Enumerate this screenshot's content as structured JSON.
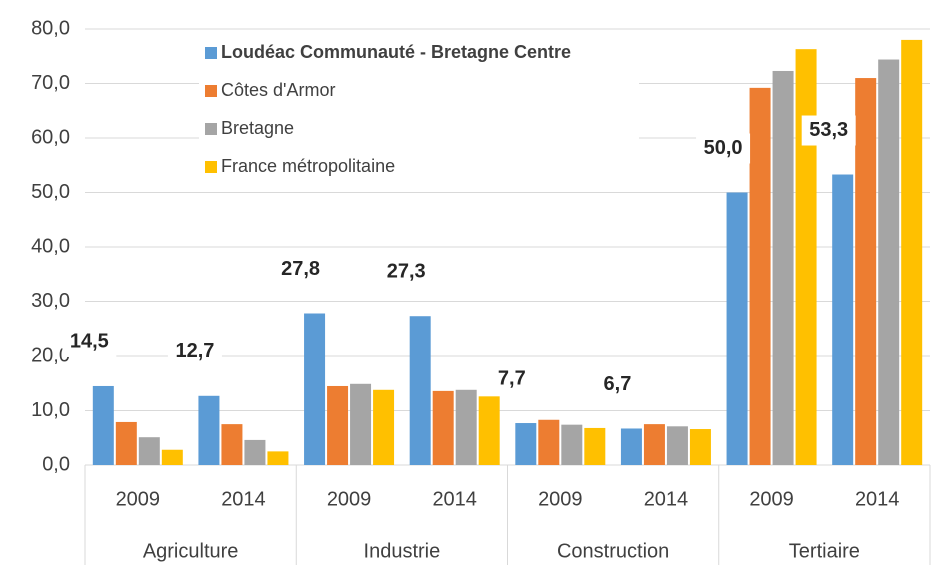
{
  "chart_data": {
    "type": "bar",
    "categories": [
      "2009",
      "2014",
      "2009",
      "2014",
      "2009",
      "2014",
      "2009",
      "2014"
    ],
    "groups": [
      "Agriculture",
      "Industrie",
      "Construction",
      "Tertiaire"
    ],
    "series": [
      {
        "name": "Loudéac Communauté - Bretagne Centre",
        "color": "#5b9bd5",
        "values": [
          14.5,
          12.7,
          27.8,
          27.3,
          7.7,
          6.7,
          50.0,
          53.3
        ],
        "value_labels": [
          "14,5",
          "12,7",
          "27,8",
          "27,3",
          "7,7",
          "6,7",
          "50,0",
          "53,3"
        ]
      },
      {
        "name": "Côtes d'Armor",
        "color": "#ed7d31",
        "values": [
          7.9,
          7.5,
          14.5,
          13.6,
          8.3,
          7.5,
          69.2,
          71.0
        ]
      },
      {
        "name": "Bretagne",
        "color": "#a5a5a5",
        "values": [
          5.1,
          4.6,
          14.9,
          13.8,
          7.4,
          7.1,
          72.3,
          74.4
        ]
      },
      {
        "name": "France métropolitaine",
        "color": "#ffc000",
        "values": [
          2.8,
          2.5,
          13.8,
          12.6,
          6.8,
          6.6,
          76.3,
          78.0
        ]
      }
    ],
    "ylim": [
      0,
      80
    ],
    "yticks": [
      {
        "value": 0,
        "label": "0,0"
      },
      {
        "value": 10,
        "label": "10,0"
      },
      {
        "value": 20,
        "label": "20,0"
      },
      {
        "value": 30,
        "label": "30,0"
      },
      {
        "value": 40,
        "label": "40,0"
      },
      {
        "value": 50,
        "label": "50,0"
      },
      {
        "value": 60,
        "label": "60,0"
      },
      {
        "value": 70,
        "label": "70,0"
      },
      {
        "value": 80,
        "label": "80,0"
      }
    ],
    "grid": true,
    "legend": "upper left"
  }
}
